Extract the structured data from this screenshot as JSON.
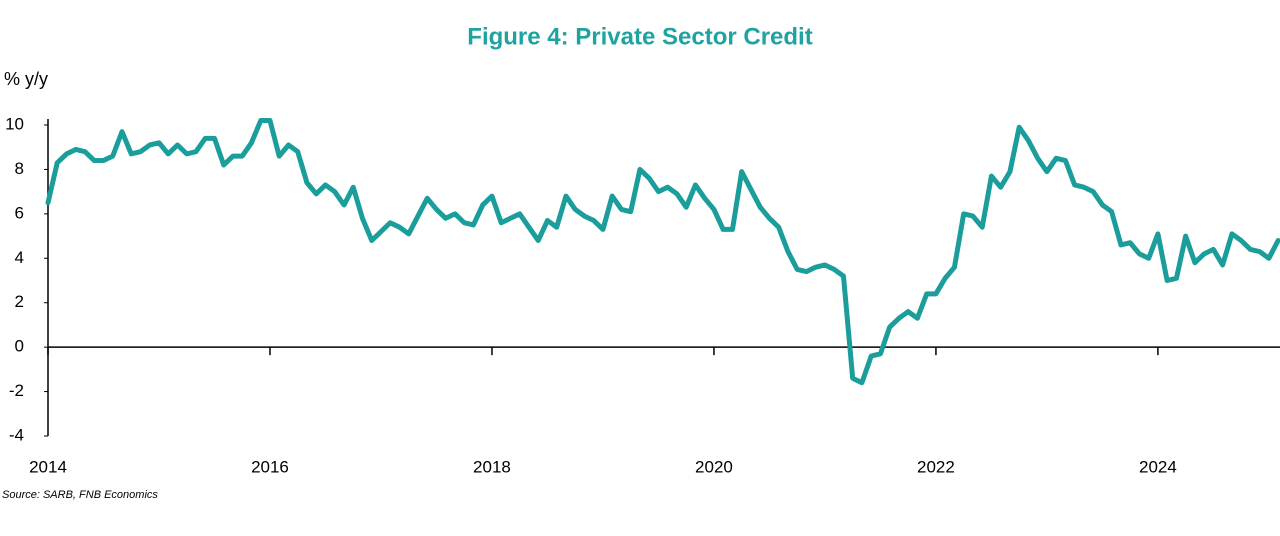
{
  "chart_data": {
    "type": "line",
    "title": "Figure 4: Private Sector Credit",
    "y_label": "% y/y",
    "source": "Source: SARB, FNB Economics",
    "x": [
      2014.0,
      2014.083,
      2014.167,
      2014.25,
      2014.333,
      2014.417,
      2014.5,
      2014.583,
      2014.667,
      2014.75,
      2014.833,
      2014.917,
      2015.0,
      2015.083,
      2015.167,
      2015.25,
      2015.333,
      2015.417,
      2015.5,
      2015.583,
      2015.667,
      2015.75,
      2015.833,
      2015.917,
      2016.0,
      2016.083,
      2016.167,
      2016.25,
      2016.333,
      2016.417,
      2016.5,
      2016.583,
      2016.667,
      2016.75,
      2016.833,
      2016.917,
      2017.0,
      2017.083,
      2017.167,
      2017.25,
      2017.333,
      2017.417,
      2017.5,
      2017.583,
      2017.667,
      2017.75,
      2017.833,
      2017.917,
      2018.0,
      2018.083,
      2018.167,
      2018.25,
      2018.333,
      2018.417,
      2018.5,
      2018.583,
      2018.667,
      2018.75,
      2018.833,
      2018.917,
      2019.0,
      2019.083,
      2019.167,
      2019.25,
      2019.333,
      2019.417,
      2019.5,
      2019.583,
      2019.667,
      2019.75,
      2019.833,
      2019.917,
      2020.0,
      2020.083,
      2020.167,
      2020.25,
      2020.333,
      2020.417,
      2020.5,
      2020.583,
      2020.667,
      2020.75,
      2020.833,
      2020.917,
      2021.0,
      2021.083,
      2021.167,
      2021.25,
      2021.333,
      2021.417,
      2021.5,
      2021.583,
      2021.667,
      2021.75,
      2021.833,
      2021.917,
      2022.0,
      2022.083,
      2022.167,
      2022.25,
      2022.333,
      2022.417,
      2022.5,
      2022.583,
      2022.667,
      2022.75,
      2022.833,
      2022.917,
      2023.0,
      2023.083,
      2023.167,
      2023.25,
      2023.333,
      2023.417,
      2023.5,
      2023.583,
      2023.667,
      2023.75,
      2023.833,
      2023.917,
      2024.0,
      2024.083,
      2024.167,
      2024.25,
      2024.333,
      2024.417,
      2024.5,
      2024.583,
      2024.667,
      2024.75,
      2024.833,
      2024.917,
      2025.0,
      2025.083
    ],
    "series": [
      {
        "name": "Private Sector Credit",
        "color": "#1b9e9b",
        "values": [
          6.5,
          8.3,
          8.7,
          8.9,
          8.8,
          8.4,
          8.4,
          8.6,
          9.7,
          8.7,
          8.8,
          9.1,
          9.2,
          8.7,
          9.1,
          8.7,
          8.8,
          9.4,
          9.4,
          8.2,
          8.6,
          8.6,
          9.2,
          10.2,
          10.2,
          8.6,
          9.1,
          8.8,
          7.4,
          6.9,
          7.3,
          7.0,
          6.4,
          7.2,
          5.8,
          4.8,
          5.2,
          5.6,
          5.4,
          5.1,
          5.9,
          6.7,
          6.2,
          5.8,
          6.0,
          5.6,
          5.5,
          6.4,
          6.8,
          5.6,
          5.8,
          6.0,
          5.4,
          4.8,
          5.7,
          5.4,
          6.8,
          6.2,
          5.9,
          5.7,
          5.3,
          6.8,
          6.2,
          6.1,
          8.0,
          7.6,
          7.0,
          7.2,
          6.9,
          6.3,
          7.3,
          6.7,
          6.2,
          5.3,
          5.3,
          7.9,
          7.1,
          6.3,
          5.8,
          5.4,
          4.3,
          3.5,
          3.4,
          3.6,
          3.7,
          3.5,
          3.2,
          -1.4,
          -1.6,
          -0.4,
          -0.3,
          0.9,
          1.3,
          1.6,
          1.3,
          2.4,
          2.4,
          3.1,
          3.6,
          6.0,
          5.9,
          5.4,
          7.7,
          7.2,
          7.9,
          9.9,
          9.3,
          8.5,
          7.9,
          8.5,
          8.4,
          7.3,
          7.2,
          7.0,
          6.4,
          6.1,
          4.6,
          4.7,
          4.2,
          4.0,
          5.1,
          3.0,
          3.1,
          5.0,
          3.8,
          4.2,
          4.4,
          3.7,
          5.1,
          4.8,
          4.4,
          4.3,
          4.0,
          4.8
        ]
      }
    ],
    "xlim": [
      2014,
      2025.1
    ],
    "xticks": [
      2014,
      2016,
      2018,
      2020,
      2022,
      2024
    ],
    "ylim": [
      -4,
      10
    ],
    "yticks": [
      -4,
      -2,
      0,
      2,
      4,
      6,
      8,
      10
    ],
    "grid": false
  }
}
